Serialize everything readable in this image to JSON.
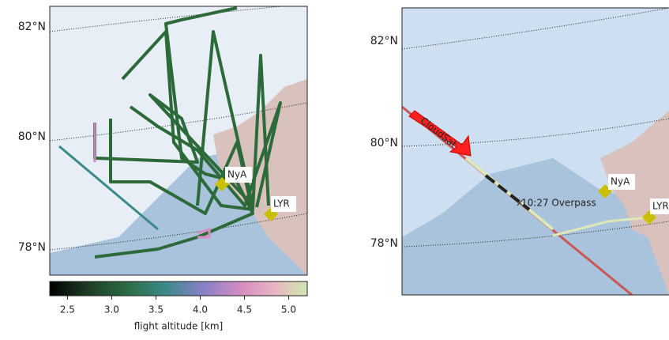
{
  "panels": [
    {
      "lat_labels": [
        "82°N",
        "80°N",
        "78°N"
      ],
      "stations": [
        "NyA",
        "LYR"
      ]
    },
    {
      "lat_labels": [
        "82°N",
        "80°N",
        "78°N"
      ],
      "stations": [
        "NyA",
        "LYR"
      ],
      "track_label": "CloudSat",
      "overpass": "10:27 Overpass"
    }
  ],
  "colorbar": {
    "label": "flight altitude [km]",
    "lim": [
      2.3,
      5.21
    ],
    "ticks": [
      2.5,
      {
        "value": 3,
        "label": "3.0"
      },
      3.5,
      {
        "value": 4,
        "label": "4.0"
      },
      4.5,
      {
        "value": 5,
        "label": "5.0"
      }
    ]
  }
}
